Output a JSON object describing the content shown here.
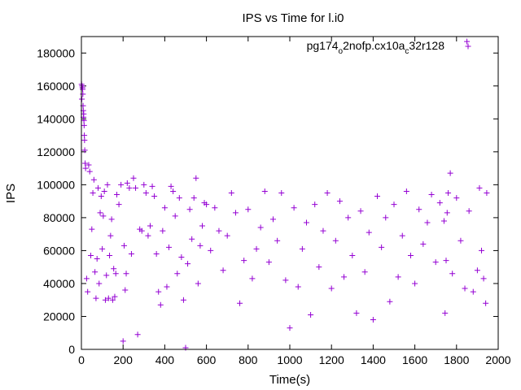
{
  "chart_data": {
    "type": "scatter",
    "title": "IPS vs Time for l.i0",
    "xlabel": "Time(s)",
    "ylabel": "IPS",
    "xlim": [
      0,
      2000
    ],
    "ylim": [
      0,
      190000
    ],
    "xticks": [
      0,
      200,
      400,
      600,
      800,
      1000,
      1200,
      1400,
      1600,
      1800,
      2000
    ],
    "yticks": [
      0,
      20000,
      40000,
      60000,
      80000,
      100000,
      120000,
      140000,
      160000,
      180000
    ],
    "xtick_labels": [
      "0",
      "200",
      "400",
      "600",
      "800",
      "1000",
      "1200",
      "1400",
      "1600",
      "1800",
      "2000"
    ],
    "ytick_labels": [
      "0",
      "20000",
      "40000",
      "60000",
      "80000",
      "100000",
      "120000",
      "140000",
      "160000",
      "180000"
    ],
    "legend_position": "top-right",
    "grid": false,
    "marker": "+",
    "series": [
      {
        "name_parts": [
          "pg174",
          "o",
          "2nofp.cx10a",
          "c",
          "32r128"
        ],
        "color": "#9400d3",
        "points": [
          [
            1,
            161000
          ],
          [
            2,
            152000
          ],
          [
            3,
            160000
          ],
          [
            5,
            159000
          ],
          [
            6,
            158000
          ],
          [
            7,
            155000
          ],
          [
            8,
            148000
          ],
          [
            9,
            145000
          ],
          [
            10,
            141000
          ],
          [
            11,
            143000
          ],
          [
            12,
            139000
          ],
          [
            13,
            136000
          ],
          [
            14,
            130000
          ],
          [
            15,
            127000
          ],
          [
            16,
            121000
          ],
          [
            18,
            113000
          ],
          [
            20,
            110000
          ],
          [
            25,
            43000
          ],
          [
            30,
            35000
          ],
          [
            35,
            112000
          ],
          [
            40,
            108000
          ],
          [
            45,
            57000
          ],
          [
            50,
            73000
          ],
          [
            55,
            95000
          ],
          [
            60,
            103000
          ],
          [
            65,
            47000
          ],
          [
            70,
            31000
          ],
          [
            75,
            55000
          ],
          [
            80,
            98000
          ],
          [
            85,
            40000
          ],
          [
            90,
            83000
          ],
          [
            95,
            93000
          ],
          [
            100,
            61000
          ],
          [
            105,
            81000
          ],
          [
            110,
            96000
          ],
          [
            115,
            30000
          ],
          [
            120,
            45000
          ],
          [
            125,
            100000
          ],
          [
            130,
            31000
          ],
          [
            135,
            57000
          ],
          [
            140,
            69000
          ],
          [
            145,
            79000
          ],
          [
            150,
            30000
          ],
          [
            155,
            49000
          ],
          [
            160,
            32000
          ],
          [
            165,
            46000
          ],
          [
            170,
            94000
          ],
          [
            180,
            88000
          ],
          [
            190,
            100000
          ],
          [
            200,
            5000
          ],
          [
            205,
            63000
          ],
          [
            210,
            36000
          ],
          [
            215,
            46000
          ],
          [
            220,
            101000
          ],
          [
            230,
            98000
          ],
          [
            240,
            58000
          ],
          [
            250,
            104000
          ],
          [
            260,
            98000
          ],
          [
            270,
            9000
          ],
          [
            280,
            73000
          ],
          [
            290,
            72000
          ],
          [
            300,
            100000
          ],
          [
            310,
            95000
          ],
          [
            320,
            69000
          ],
          [
            330,
            75000
          ],
          [
            340,
            99000
          ],
          [
            350,
            93000
          ],
          [
            360,
            58000
          ],
          [
            370,
            35000
          ],
          [
            380,
            27000
          ],
          [
            390,
            72000
          ],
          [
            400,
            86000
          ],
          [
            410,
            38000
          ],
          [
            420,
            62000
          ],
          [
            430,
            99000
          ],
          [
            440,
            96000
          ],
          [
            450,
            81000
          ],
          [
            460,
            46000
          ],
          [
            470,
            92000
          ],
          [
            480,
            56000
          ],
          [
            490,
            30000
          ],
          [
            500,
            1000
          ],
          [
            510,
            52000
          ],
          [
            520,
            85000
          ],
          [
            530,
            67000
          ],
          [
            540,
            92000
          ],
          [
            550,
            104000
          ],
          [
            560,
            40000
          ],
          [
            570,
            63000
          ],
          [
            580,
            75000
          ],
          [
            590,
            89000
          ],
          [
            600,
            88000
          ],
          [
            620,
            60000
          ],
          [
            640,
            86000
          ],
          [
            660,
            72000
          ],
          [
            680,
            48000
          ],
          [
            700,
            69000
          ],
          [
            720,
            95000
          ],
          [
            740,
            83000
          ],
          [
            760,
            28000
          ],
          [
            780,
            54000
          ],
          [
            800,
            85000
          ],
          [
            820,
            43000
          ],
          [
            840,
            61000
          ],
          [
            860,
            74000
          ],
          [
            880,
            96000
          ],
          [
            900,
            53000
          ],
          [
            920,
            79000
          ],
          [
            940,
            66000
          ],
          [
            960,
            95000
          ],
          [
            980,
            42000
          ],
          [
            1000,
            13000
          ],
          [
            1020,
            86000
          ],
          [
            1040,
            38000
          ],
          [
            1060,
            61000
          ],
          [
            1080,
            77000
          ],
          [
            1100,
            21000
          ],
          [
            1120,
            88000
          ],
          [
            1140,
            50000
          ],
          [
            1160,
            72000
          ],
          [
            1180,
            95000
          ],
          [
            1200,
            37000
          ],
          [
            1220,
            66000
          ],
          [
            1240,
            90000
          ],
          [
            1260,
            44000
          ],
          [
            1280,
            80000
          ],
          [
            1300,
            57000
          ],
          [
            1320,
            22000
          ],
          [
            1340,
            84000
          ],
          [
            1360,
            47000
          ],
          [
            1380,
            71000
          ],
          [
            1400,
            18000
          ],
          [
            1420,
            93000
          ],
          [
            1440,
            62000
          ],
          [
            1460,
            80000
          ],
          [
            1480,
            29000
          ],
          [
            1500,
            88000
          ],
          [
            1520,
            44000
          ],
          [
            1540,
            69000
          ],
          [
            1560,
            96000
          ],
          [
            1580,
            57000
          ],
          [
            1600,
            40000
          ],
          [
            1620,
            85000
          ],
          [
            1640,
            64000
          ],
          [
            1660,
            77000
          ],
          [
            1680,
            94000
          ],
          [
            1700,
            53000
          ],
          [
            1720,
            89000
          ],
          [
            1740,
            78000
          ],
          [
            1745,
            22000
          ],
          [
            1750,
            54000
          ],
          [
            1755,
            83000
          ],
          [
            1760,
            95000
          ],
          [
            1770,
            107000
          ],
          [
            1780,
            46000
          ],
          [
            1800,
            92000
          ],
          [
            1820,
            66000
          ],
          [
            1840,
            37000
          ],
          [
            1850,
            187000
          ],
          [
            1860,
            84000
          ],
          [
            1880,
            35000
          ],
          [
            1900,
            48000
          ],
          [
            1910,
            98000
          ],
          [
            1920,
            60000
          ],
          [
            1930,
            43000
          ],
          [
            1940,
            28000
          ],
          [
            1945,
            95000
          ]
        ]
      }
    ]
  }
}
